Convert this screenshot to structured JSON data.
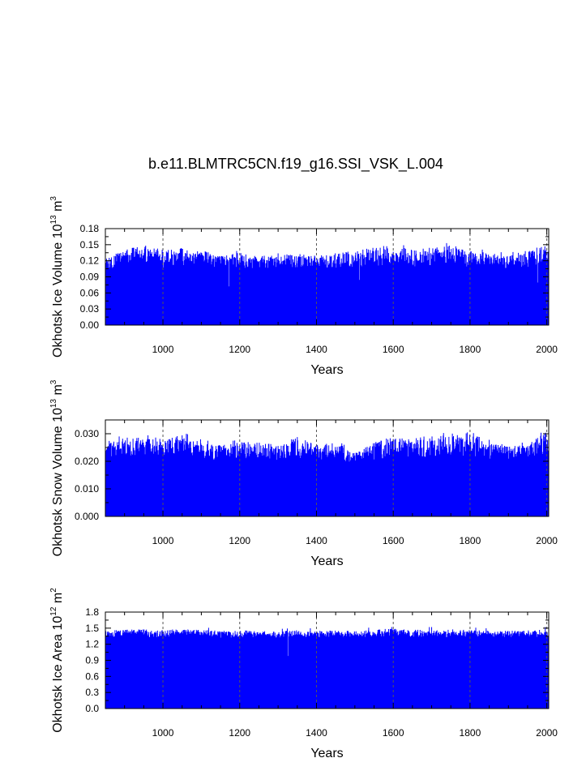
{
  "figure": {
    "title": "b.e11.BLMTRC5CN.f19_g16.SSI_VSK_L.004",
    "series_color": "#0000ff"
  },
  "chart_data": [
    {
      "type": "bar",
      "title": "b.e11.BLMTRC5CN.f19_g16.SSI_VSK_L.004",
      "xlabel": "Years",
      "ylabel": "Okhotsk Ice Volume 10",
      "ylabel_exp": "13",
      "ylabel_unit": "m",
      "ylabel_unit_exp": "3",
      "xlim": [
        850,
        2005
      ],
      "ylim": [
        0,
        0.18
      ],
      "xticks": [
        1000,
        1200,
        1400,
        1600,
        1800,
        2000
      ],
      "xtick_labels": [
        "1000",
        "1200",
        "1400",
        "1600",
        "1800",
        "2000"
      ],
      "yticks": [
        0,
        0.03,
        0.06,
        0.09,
        0.12,
        0.15,
        0.18
      ],
      "ytick_labels": [
        "0.00",
        "0.03",
        "0.06",
        "0.09",
        "0.12",
        "0.15",
        "0.18"
      ],
      "vertical_dotted_grid_at": [
        1000,
        1200,
        1400,
        1600,
        1800,
        2000
      ],
      "series": [
        {
          "approx_annual_values": {
            "x_start": 850,
            "x_end": 2005,
            "step": 1,
            "typical_min": 0.09,
            "typical_max": 0.13,
            "peak_max": 0.153,
            "upper_envelope_by_century": [
              [
                850,
                0.128
              ],
              [
                900,
                0.14
              ],
              [
                950,
                0.15
              ],
              [
                1000,
                0.14
              ],
              [
                1050,
                0.145
              ],
              [
                1100,
                0.14
              ],
              [
                1150,
                0.13
              ],
              [
                1200,
                0.135
              ],
              [
                1250,
                0.13
              ],
              [
                1300,
                0.13
              ],
              [
                1350,
                0.135
              ],
              [
                1400,
                0.13
              ],
              [
                1450,
                0.135
              ],
              [
                1500,
                0.14
              ],
              [
                1550,
                0.145
              ],
              [
                1600,
                0.15
              ],
              [
                1650,
                0.14
              ],
              [
                1700,
                0.145
              ],
              [
                1750,
                0.15
              ],
              [
                1800,
                0.14
              ],
              [
                1850,
                0.135
              ],
              [
                1900,
                0.13
              ],
              [
                1950,
                0.14
              ],
              [
                2000,
                0.15
              ]
            ]
          }
        }
      ]
    },
    {
      "type": "bar",
      "xlabel": "Years",
      "ylabel": "Okhotsk Snow Volume 10",
      "ylabel_exp": "13",
      "ylabel_unit": "m",
      "ylabel_unit_exp": "3",
      "xlim": [
        850,
        2005
      ],
      "ylim": [
        0,
        0.035
      ],
      "xticks": [
        1000,
        1200,
        1400,
        1600,
        1800,
        2000
      ],
      "xtick_labels": [
        "1000",
        "1200",
        "1400",
        "1600",
        "1800",
        "2000"
      ],
      "yticks": [
        0,
        0.01,
        0.02,
        0.03
      ],
      "ytick_labels": [
        "0.000",
        "0.010",
        "0.020",
        "0.030"
      ],
      "vertical_dotted_grid_at": [
        1000,
        1200,
        1400,
        1600,
        1800,
        2000
      ],
      "series": [
        {
          "approx_annual_values": {
            "x_start": 850,
            "x_end": 2005,
            "step": 1,
            "typical_min": 0.017,
            "typical_max": 0.027,
            "peak_max": 0.033,
            "upper_envelope_by_century": [
              [
                850,
                0.026
              ],
              [
                900,
                0.029
              ],
              [
                950,
                0.029
              ],
              [
                1000,
                0.027
              ],
              [
                1050,
                0.031
              ],
              [
                1100,
                0.027
              ],
              [
                1150,
                0.026
              ],
              [
                1200,
                0.027
              ],
              [
                1250,
                0.027
              ],
              [
                1300,
                0.026
              ],
              [
                1350,
                0.029
              ],
              [
                1400,
                0.026
              ],
              [
                1450,
                0.027
              ],
              [
                1500,
                0.023
              ],
              [
                1550,
                0.027
              ],
              [
                1600,
                0.029
              ],
              [
                1650,
                0.028
              ],
              [
                1700,
                0.03
              ],
              [
                1750,
                0.029
              ],
              [
                1800,
                0.031
              ],
              [
                1850,
                0.027
              ],
              [
                1900,
                0.026
              ],
              [
                1950,
                0.026
              ],
              [
                2000,
                0.031
              ]
            ]
          }
        }
      ]
    },
    {
      "type": "bar",
      "xlabel": "Years",
      "ylabel": "Okhotsk Ice Area 10",
      "ylabel_exp": "12",
      "ylabel_unit": "m",
      "ylabel_unit_exp": "2",
      "xlim": [
        850,
        2005
      ],
      "ylim": [
        0,
        1.8
      ],
      "xticks": [
        1000,
        1200,
        1400,
        1600,
        1800,
        2000
      ],
      "xtick_labels": [
        "1000",
        "1200",
        "1400",
        "1600",
        "1800",
        "2000"
      ],
      "yticks": [
        0,
        0.3,
        0.6,
        0.9,
        1.2,
        1.5,
        1.8
      ],
      "ytick_labels": [
        "0.0",
        "0.3",
        "0.6",
        "0.9",
        "1.2",
        "1.5",
        "1.8"
      ],
      "vertical_dotted_grid_at": [
        1000,
        1200,
        1400,
        1600,
        1800,
        2000
      ],
      "series": [
        {
          "approx_annual_values": {
            "x_start": 850,
            "x_end": 2005,
            "step": 1,
            "typical_min": 1.25,
            "typical_max": 1.47,
            "peak_max": 1.52,
            "upper_envelope_by_century": [
              [
                850,
                1.45
              ],
              [
                900,
                1.48
              ],
              [
                950,
                1.48
              ],
              [
                1000,
                1.47
              ],
              [
                1050,
                1.48
              ],
              [
                1100,
                1.47
              ],
              [
                1150,
                1.45
              ],
              [
                1200,
                1.46
              ],
              [
                1250,
                1.45
              ],
              [
                1300,
                1.44
              ],
              [
                1350,
                1.46
              ],
              [
                1400,
                1.45
              ],
              [
                1450,
                1.46
              ],
              [
                1500,
                1.45
              ],
              [
                1550,
                1.47
              ],
              [
                1600,
                1.5
              ],
              [
                1650,
                1.47
              ],
              [
                1700,
                1.48
              ],
              [
                1750,
                1.48
              ],
              [
                1800,
                1.47
              ],
              [
                1850,
                1.45
              ],
              [
                1900,
                1.45
              ],
              [
                1950,
                1.46
              ],
              [
                2000,
                1.48
              ]
            ]
          }
        }
      ]
    }
  ]
}
